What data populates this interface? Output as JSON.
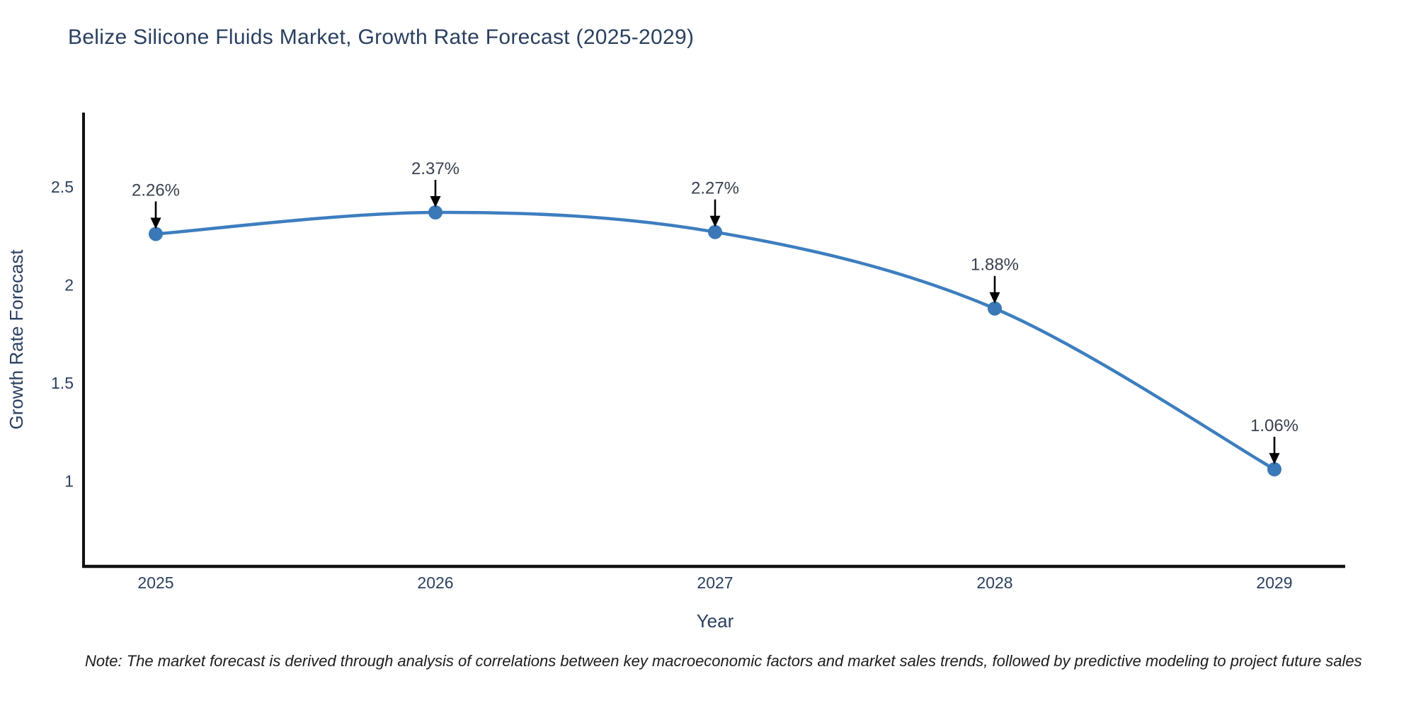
{
  "note": {
    "text": "Note: The market forecast is derived through analysis of correlations between key macroeconomic factors and market sales trends, followed by predictive modeling to project future sales"
  },
  "chart_data": {
    "type": "line",
    "title": "Belize Silicone Fluids Market, Growth Rate Forecast (2025-2029)",
    "categories": [
      "2025",
      "2026",
      "2027",
      "2028",
      "2029"
    ],
    "values": [
      2.26,
      2.37,
      2.27,
      1.88,
      1.06
    ],
    "point_labels": [
      "2.26%",
      "2.37%",
      "2.27%",
      "1.88%",
      "1.06%"
    ],
    "xlabel": "Year",
    "ylabel": "Growth Rate Forecast",
    "yticks": [
      1,
      1.5,
      2,
      2.5
    ],
    "ylim": [
      0.565,
      2.879
    ],
    "grid": false,
    "legend_position": "none",
    "line_shape": "spline",
    "annotation_style": "label-with-down-arrow",
    "colors": {
      "line": "#3d7ebf",
      "marker": "#3a78b8",
      "axis": "#111111",
      "text": "#2a3f5f",
      "annotation": "#39404f",
      "note": "#1c1c1c"
    }
  }
}
